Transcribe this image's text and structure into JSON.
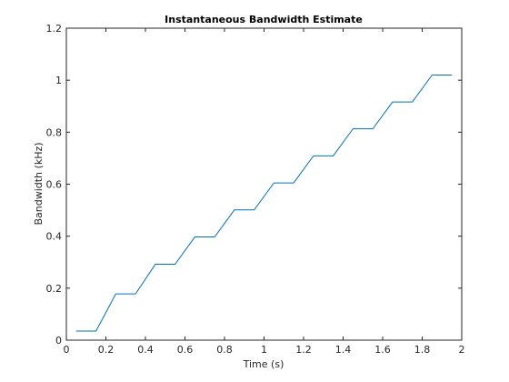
{
  "chart_data": {
    "type": "line",
    "title": "Instantaneous Bandwidth Estimate",
    "xlabel": "Time (s)",
    "ylabel": "Bandwidth (kHz)",
    "xlim": [
      0,
      2
    ],
    "ylim": [
      0,
      1.2
    ],
    "xticks": [
      0,
      0.2,
      0.4,
      0.6,
      0.8,
      1,
      1.2,
      1.4,
      1.6,
      1.8,
      2
    ],
    "yticks": [
      0,
      0.2,
      0.4,
      0.6,
      0.8,
      1,
      1.2
    ],
    "xtick_labels": [
      "0",
      "0.2",
      "0.4",
      "0.6",
      "0.8",
      "1",
      "1.2",
      "1.4",
      "1.6",
      "1.8",
      "2"
    ],
    "ytick_labels": [
      "0",
      "0.2",
      "0.4",
      "0.6",
      "0.8",
      "1",
      "1.2"
    ],
    "grid": false,
    "series": [
      {
        "color": "#0072BD",
        "x": [
          0.05,
          0.15,
          0.25,
          0.35,
          0.45,
          0.55,
          0.65,
          0.75,
          0.85,
          0.95,
          1.05,
          1.15,
          1.25,
          1.35,
          1.45,
          1.55,
          1.65,
          1.75,
          1.85,
          1.95
        ],
        "y": [
          0.035,
          0.035,
          0.178,
          0.178,
          0.292,
          0.292,
          0.397,
          0.397,
          0.501,
          0.501,
          0.605,
          0.605,
          0.709,
          0.709,
          0.813,
          0.813,
          0.916,
          0.916,
          1.02,
          1.02
        ]
      }
    ]
  }
}
